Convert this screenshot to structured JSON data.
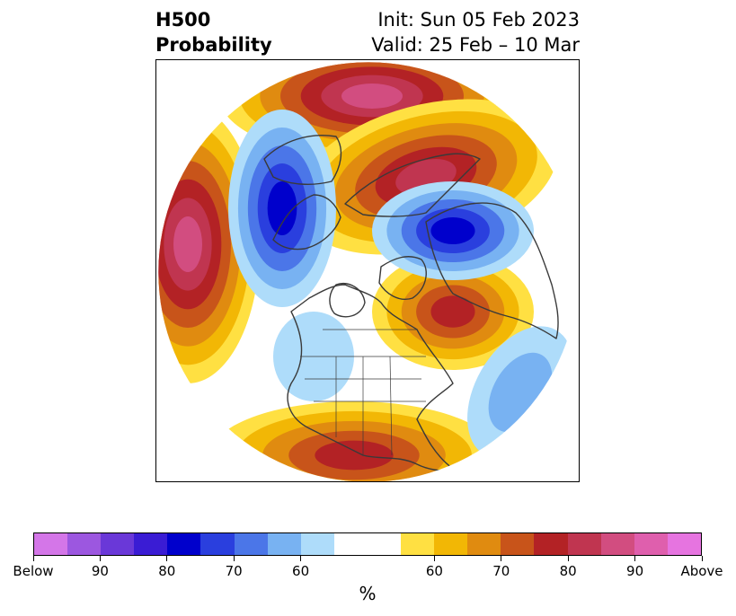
{
  "title": {
    "left_line1": "H500",
    "left_line2": "Probability",
    "right_line1": "Init: Sun 05 Feb 2023",
    "right_line2": "Valid: 25 Feb – 10 Mar"
  },
  "chart_data": {
    "type": "heatmap",
    "description_field": "H500 probability map",
    "colorbar": {
      "unit_label": "%",
      "tick_labels": [
        "Below",
        "90",
        "80",
        "70",
        "60",
        "60",
        "70",
        "80",
        "90",
        "Above"
      ],
      "segments": [
        {
          "category": "below",
          "level": 100,
          "color": "#d476e8"
        },
        {
          "category": "below",
          "level": 95,
          "color": "#9c57e0"
        },
        {
          "category": "below",
          "level": 90,
          "color": "#6a38d8"
        },
        {
          "category": "below",
          "level": 85,
          "color": "#3a1cd4"
        },
        {
          "category": "below",
          "level": 80,
          "color": "#0000cc"
        },
        {
          "category": "below",
          "level": 75,
          "color": "#2a3fde"
        },
        {
          "category": "below",
          "level": 70,
          "color": "#4b76e8"
        },
        {
          "category": "below",
          "level": 65,
          "color": "#78b2f2"
        },
        {
          "category": "below",
          "level": 60,
          "color": "#aedcfa"
        },
        {
          "category": "neutral",
          "level": 50,
          "color": "#ffffff"
        },
        {
          "category": "neutral",
          "level": 50,
          "color": "#ffffff"
        },
        {
          "category": "above",
          "level": 60,
          "color": "#ffe042"
        },
        {
          "category": "above",
          "level": 65,
          "color": "#f2b705"
        },
        {
          "category": "above",
          "level": 70,
          "color": "#e08b10"
        },
        {
          "category": "above",
          "level": 75,
          "color": "#c8541a"
        },
        {
          "category": "above",
          "level": 80,
          "color": "#b32225"
        },
        {
          "category": "above",
          "level": 85,
          "color": "#c03550"
        },
        {
          "category": "above",
          "level": 90,
          "color": "#d24d80"
        },
        {
          "category": "above",
          "level": 95,
          "color": "#df5fad"
        },
        {
          "category": "above",
          "level": 100,
          "color": "#e674e0"
        }
      ]
    },
    "regions": [
      {
        "name": "north-pacific-ridge",
        "category": "above",
        "peak_level": 90
      },
      {
        "name": "bering-ridge",
        "category": "above",
        "peak_level": 90
      },
      {
        "name": "arctic-ridge",
        "category": "above",
        "peak_level": 85
      },
      {
        "name": "north-atlantic-ridge",
        "category": "above",
        "peak_level": 80
      },
      {
        "name": "southeast-us-ridge",
        "category": "above",
        "peak_level": 80
      },
      {
        "name": "siberia-trough",
        "category": "below",
        "peak_level": 80
      },
      {
        "name": "northern-europe-trough",
        "category": "below",
        "peak_level": 80
      },
      {
        "name": "western-north-america-trough",
        "category": "below",
        "peak_level": 60
      },
      {
        "name": "central-atlantic-trough",
        "category": "below",
        "peak_level": 65
      }
    ]
  }
}
